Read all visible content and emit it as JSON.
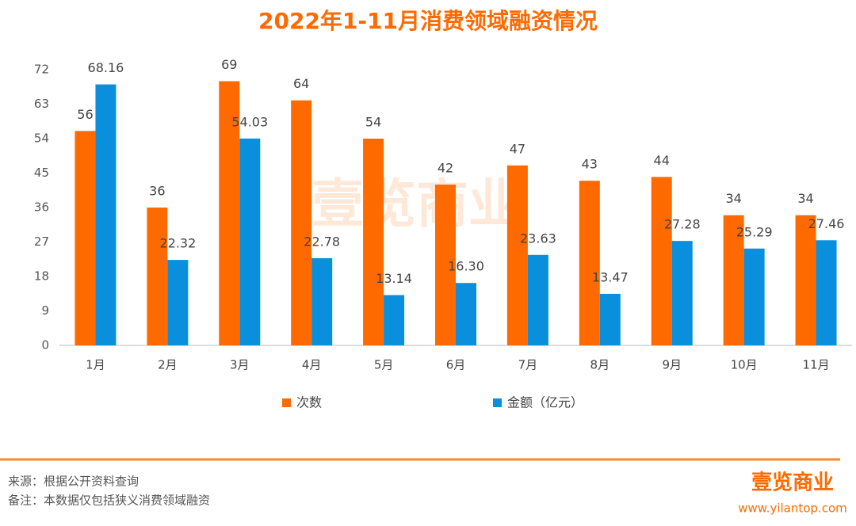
{
  "chart_data": {
    "type": "bar",
    "title": "2022年1-11月消费领域融资情况",
    "categories": [
      "1月",
      "2月",
      "3月",
      "4月",
      "5月",
      "6月",
      "7月",
      "8月",
      "9月",
      "10月",
      "11月"
    ],
    "series": [
      {
        "name": "次数",
        "color": "#ff6a00",
        "values": [
          56,
          36,
          69,
          64,
          54,
          42,
          47,
          43,
          44,
          34,
          34
        ]
      },
      {
        "name": "金额（亿元）",
        "color": "#0a8fdc",
        "values": [
          68.16,
          22.32,
          54.03,
          22.78,
          13.14,
          16.3,
          23.63,
          13.47,
          27.28,
          25.29,
          27.46
        ],
        "value_labels": [
          "68.16",
          "22.32",
          "54.03",
          "22.78",
          "13.14",
          "16.30",
          "23.63",
          "13.47",
          "27.28",
          "25.29",
          "27.46"
        ]
      }
    ],
    "ylim": [
      0,
      72
    ],
    "yticks": [
      0,
      9,
      18,
      27,
      36,
      45,
      54,
      63,
      72
    ],
    "grid": false,
    "legend": "bottom"
  },
  "watermark": "壹览商业",
  "source": "来源：根据公开资料查询",
  "note": "备注：本数据仅包括狭义消费领域融资",
  "brand": "壹览商业",
  "website": "www.yilantop.com"
}
